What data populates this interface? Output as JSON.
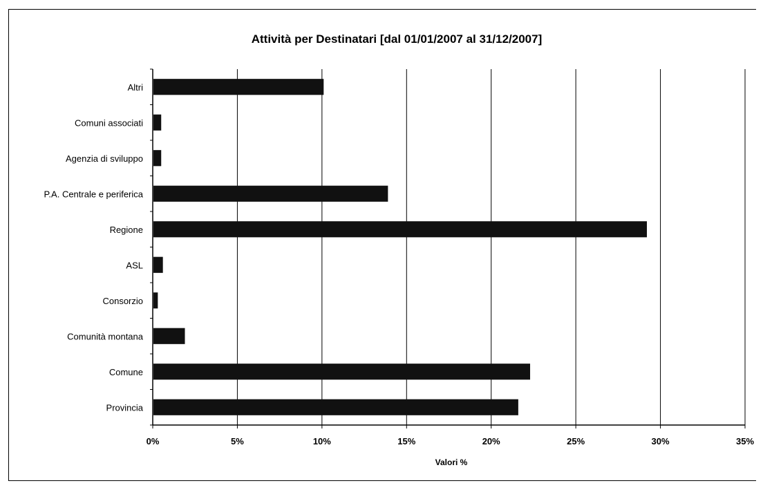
{
  "chart_data": {
    "type": "bar",
    "orientation": "horizontal",
    "title": "Attività per Destinatari [dal 01/01/2007 al 31/12/2007]",
    "xlabel": "Valori %",
    "ylabel": "",
    "categories": [
      "Altri",
      "Comuni associati",
      "Agenzia di sviluppo",
      "P.A. Centrale e periferica",
      "Regione",
      "ASL",
      "Consorzio",
      "Comunità montana",
      "Comune",
      "Provincia"
    ],
    "values": [
      10.1,
      0.5,
      0.5,
      13.9,
      29.2,
      0.6,
      0.3,
      1.9,
      22.3,
      21.6
    ],
    "xlim": [
      0,
      35
    ],
    "xticks": [
      0,
      5,
      10,
      15,
      20,
      25,
      30,
      35
    ],
    "xtick_labels": [
      "0%",
      "5%",
      "10%",
      "15%",
      "20%",
      "25%",
      "30%",
      "35%"
    ],
    "grid": "vertical",
    "legend": "none",
    "bar_color": "#111111"
  }
}
